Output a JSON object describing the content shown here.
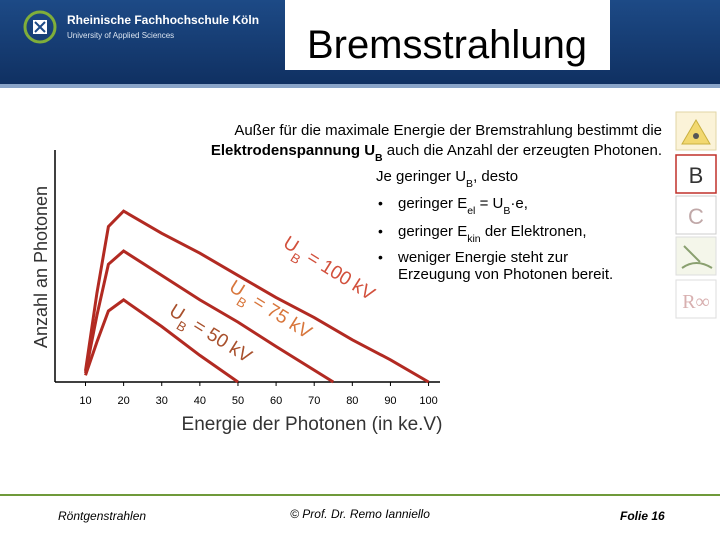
{
  "header": {
    "school": "Rheinische Fachhochschule Köln",
    "subtitle": "University of Applied Sciences",
    "title": "Bremsstrahlung"
  },
  "intro": [
    [
      {
        "t": "Außer für die maximale Energie der Bremstrahlung bestimmt die"
      }
    ],
    [
      {
        "t": "Elektrodenspannung U",
        "bold": true
      },
      {
        "t": "B",
        "bold": true,
        "sub": true
      },
      {
        "t": " auch die Anzahl der erzeugten Photonen."
      }
    ]
  ],
  "lead": [
    {
      "t": "Je geringer U"
    },
    {
      "t": "B",
      "sub": true
    },
    {
      "t": ", desto"
    }
  ],
  "bullets": [
    [
      {
        "t": "geringer E"
      },
      {
        "t": "el",
        "sub": true
      },
      {
        "t": " = U"
      },
      {
        "t": "B",
        "sub": true
      },
      {
        "t": "·e,"
      }
    ],
    [
      {
        "t": "geringer E"
      },
      {
        "t": "kin",
        "sub": true
      },
      {
        "t": " der Elektronen,"
      }
    ],
    [
      {
        "t": "weniger Energie steht zur"
      }
    ],
    [
      {
        "t": "Erzeugung von Photonen bereit."
      }
    ]
  ],
  "bullet_symbol": "•",
  "chart_data": {
    "type": "line",
    "x_label": "Energie der Photonen (in ke.V)",
    "y_label": "Anzahl an Photonen",
    "xlim": [
      2,
      103
    ],
    "xticks": [
      10,
      20,
      30,
      40,
      50,
      60,
      70,
      80,
      90,
      100
    ],
    "ylim": [
      0,
      100
    ],
    "series": [
      {
        "label": [
          {
            "t": "U"
          },
          {
            "t": "B",
            "sub": true
          },
          {
            "t": " = 100 kV"
          }
        ],
        "color": "#b22a22",
        "label_color": "#d2503c",
        "x": [
          10,
          13,
          16,
          20,
          30,
          40,
          50,
          60,
          70,
          80,
          90,
          100
        ],
        "values": [
          5,
          40,
          70,
          77,
          67,
          58,
          48,
          38,
          29,
          19,
          10,
          0
        ]
      },
      {
        "label": [
          {
            "t": "U"
          },
          {
            "t": "B",
            "sub": true
          },
          {
            "t": " = 75 kV"
          }
        ],
        "color": "#b22a22",
        "label_color": "#d8763c",
        "x": [
          10,
          13,
          16,
          20,
          30,
          40,
          50,
          60,
          75
        ],
        "values": [
          4,
          30,
          53,
          59,
          48,
          37,
          27,
          16,
          0
        ]
      },
      {
        "label": [
          {
            "t": "U"
          },
          {
            "t": "B",
            "sub": true
          },
          {
            "t": " = 50 kV"
          }
        ],
        "color": "#b22a22",
        "label_color": "#a8502c",
        "x": [
          10,
          13,
          16,
          20,
          30,
          40,
          50
        ],
        "values": [
          3,
          18,
          32,
          37,
          25,
          12,
          0
        ]
      }
    ]
  },
  "sidebar": {
    "b": "B",
    "c": "C",
    "r": "R∞"
  },
  "footer": {
    "left": "Röntgenstrahlen",
    "center": "© Prof. Dr. Remo Ianniello",
    "right": "Folie 16"
  }
}
